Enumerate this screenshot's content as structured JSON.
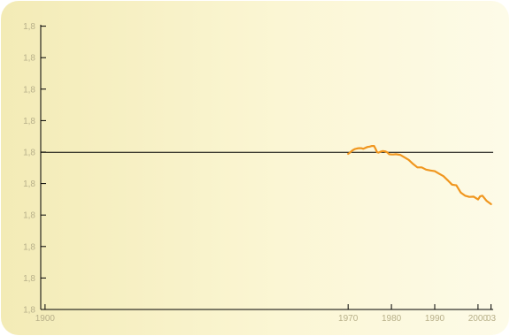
{
  "chart_data": {
    "type": "line",
    "title": "",
    "xlabel": "",
    "ylabel": "",
    "x_ticks": [
      "1900",
      "1970",
      "1980",
      "1990",
      "2000",
      "03"
    ],
    "y_ticks": [
      "1,8",
      "1,8",
      "1,8",
      "1,8",
      "1,8",
      "1,8",
      "1,8",
      "1,8",
      "1,8",
      "1,8"
    ],
    "xlim": [
      1899,
      2003.5
    ],
    "ylim": [
      0,
      9
    ],
    "grid": false,
    "reference_line": {
      "y": 5
    },
    "series": [
      {
        "color": "#f0961e",
        "x": [
          1970,
          1970.5,
          1971,
          1971.5,
          1972,
          1972.5,
          1973,
          1973.5,
          1974,
          1974.5,
          1975,
          1975.5,
          1976,
          1976.3,
          1976.7,
          1977,
          1977.5,
          1978,
          1978.5,
          1979,
          1979.5,
          1980,
          1980.5,
          1981,
          1982,
          1983,
          1984,
          1985,
          1986,
          1987,
          1988,
          1989,
          1990,
          1991,
          1992,
          1993,
          1994,
          1995,
          1996,
          1997,
          1998,
          1999,
          2000,
          2000.5,
          2001,
          2002,
          2003
        ],
        "y": [
          4.95,
          5.0,
          5.06,
          5.1,
          5.12,
          5.13,
          5.13,
          5.11,
          5.14,
          5.17,
          5.18,
          5.2,
          5.2,
          5.12,
          5.0,
          4.99,
          5.02,
          5.04,
          5.03,
          5.0,
          4.94,
          4.93,
          4.93,
          4.94,
          4.92,
          4.84,
          4.76,
          4.63,
          4.52,
          4.52,
          4.45,
          4.42,
          4.4,
          4.32,
          4.24,
          4.11,
          3.97,
          3.95,
          3.72,
          3.62,
          3.58,
          3.59,
          3.5,
          3.6,
          3.62,
          3.45,
          3.35
        ]
      }
    ]
  }
}
